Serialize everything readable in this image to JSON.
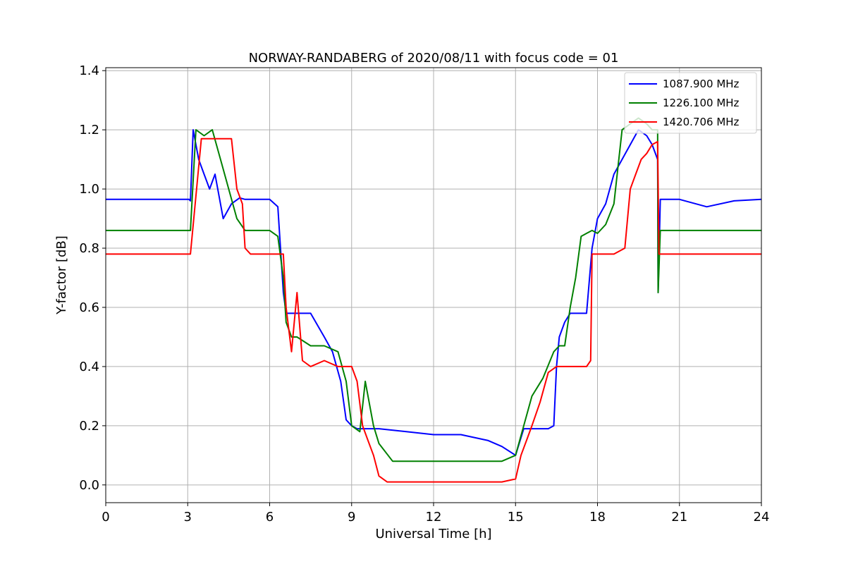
{
  "chart_data": {
    "type": "line",
    "title": "NORWAY-RANDABERG of 2020/08/11 with focus code = 01",
    "xlabel": "Universal Time [h]",
    "ylabel": "Y-factor [dB]",
    "xlim": [
      0,
      24
    ],
    "ylim": [
      -0.06,
      1.41
    ],
    "xticks": [
      0,
      3,
      6,
      9,
      12,
      15,
      18,
      21,
      24
    ],
    "xtick_labels": [
      "0",
      "3",
      "6",
      "9",
      "12",
      "15",
      "18",
      "21",
      "24"
    ],
    "yticks": [
      0.0,
      0.2,
      0.4,
      0.6,
      0.8,
      1.0,
      1.2,
      1.4
    ],
    "ytick_labels": [
      "0.0",
      "0.2",
      "0.4",
      "0.6",
      "0.8",
      "1.0",
      "1.2",
      "1.4"
    ],
    "grid": true,
    "legend_position": "top-right",
    "series": [
      {
        "name": "1087.900 MHz",
        "color": "#0000ff",
        "x": [
          0,
          3.05,
          3.1,
          3.2,
          3.4,
          3.6,
          3.8,
          4.0,
          4.3,
          4.6,
          4.9,
          5.1,
          5.5,
          6.0,
          6.3,
          6.5,
          6.6,
          6.8,
          7.0,
          7.5,
          8.0,
          8.3,
          8.6,
          8.8,
          9.0,
          9.2,
          9.5,
          10.0,
          11.0,
          12.0,
          13.0,
          14.0,
          14.5,
          15.0,
          15.3,
          15.6,
          15.9,
          16.2,
          16.4,
          16.5,
          16.6,
          16.8,
          17.0,
          17.3,
          17.6,
          17.8,
          18.0,
          18.3,
          18.6,
          18.9,
          19.2,
          19.5,
          19.8,
          20.0,
          20.2,
          20.22,
          20.3,
          21.0,
          22.0,
          23.0,
          24.0
        ],
        "y": [
          0.965,
          0.965,
          0.96,
          1.2,
          1.1,
          1.05,
          1.0,
          1.05,
          0.9,
          0.95,
          0.97,
          0.965,
          0.965,
          0.965,
          0.94,
          0.65,
          0.58,
          0.58,
          0.58,
          0.58,
          0.5,
          0.45,
          0.35,
          0.22,
          0.2,
          0.19,
          0.19,
          0.19,
          0.18,
          0.17,
          0.17,
          0.15,
          0.13,
          0.1,
          0.19,
          0.19,
          0.19,
          0.19,
          0.2,
          0.4,
          0.5,
          0.55,
          0.58,
          0.58,
          0.58,
          0.8,
          0.9,
          0.95,
          1.05,
          1.1,
          1.15,
          1.2,
          1.18,
          1.15,
          1.1,
          0.65,
          0.965,
          0.965,
          0.94,
          0.96,
          0.965
        ]
      },
      {
        "name": "1226.100 MHz",
        "color": "#008000",
        "x": [
          0,
          3.05,
          3.1,
          3.3,
          3.6,
          3.9,
          4.2,
          4.5,
          4.8,
          5.1,
          5.5,
          6.0,
          6.3,
          6.5,
          6.6,
          6.8,
          7.0,
          7.5,
          8.0,
          8.5,
          8.8,
          9.0,
          9.3,
          9.5,
          9.8,
          10.0,
          10.5,
          11.0,
          12.0,
          13.0,
          14.0,
          14.5,
          15.0,
          15.3,
          15.6,
          16.0,
          16.4,
          16.6,
          16.8,
          17.0,
          17.2,
          17.4,
          17.6,
          17.8,
          18.0,
          18.3,
          18.6,
          18.9,
          19.2,
          19.5,
          19.8,
          20.0,
          20.2,
          20.22,
          20.3,
          21.0,
          22.0,
          23.0,
          24.0
        ],
        "y": [
          0.86,
          0.86,
          0.86,
          1.2,
          1.18,
          1.2,
          1.1,
          1.0,
          0.9,
          0.86,
          0.86,
          0.86,
          0.84,
          0.7,
          0.55,
          0.5,
          0.5,
          0.47,
          0.47,
          0.45,
          0.35,
          0.2,
          0.18,
          0.35,
          0.2,
          0.14,
          0.08,
          0.08,
          0.08,
          0.08,
          0.08,
          0.08,
          0.1,
          0.2,
          0.3,
          0.36,
          0.45,
          0.47,
          0.47,
          0.6,
          0.7,
          0.84,
          0.85,
          0.86,
          0.85,
          0.88,
          0.95,
          1.2,
          1.22,
          1.24,
          1.22,
          1.2,
          1.2,
          0.65,
          0.86,
          0.86,
          0.86,
          0.86,
          0.86
        ]
      },
      {
        "name": "1420.706 MHz",
        "color": "#ff0000",
        "x": [
          0,
          3.05,
          3.1,
          3.5,
          4.0,
          4.5,
          4.6,
          4.8,
          5.0,
          5.1,
          5.3,
          5.6,
          6.0,
          6.5,
          6.6,
          6.8,
          7.0,
          7.2,
          7.5,
          8.0,
          8.5,
          9.0,
          9.2,
          9.4,
          9.6,
          9.8,
          10.0,
          10.3,
          11.0,
          12.0,
          13.0,
          14.0,
          14.5,
          15.0,
          15.2,
          15.4,
          15.6,
          15.9,
          16.2,
          16.5,
          16.8,
          17.0,
          17.3,
          17.6,
          17.75,
          17.8,
          18.0,
          18.3,
          18.6,
          19.0,
          19.2,
          19.4,
          19.6,
          19.8,
          20.0,
          20.2,
          20.25,
          20.3,
          21.0,
          22.0,
          23.0,
          24.0
        ],
        "y": [
          0.78,
          0.78,
          0.78,
          1.17,
          1.17,
          1.17,
          1.17,
          1.0,
          0.95,
          0.8,
          0.78,
          0.78,
          0.78,
          0.78,
          0.6,
          0.45,
          0.65,
          0.42,
          0.4,
          0.42,
          0.4,
          0.4,
          0.35,
          0.2,
          0.15,
          0.1,
          0.03,
          0.01,
          0.01,
          0.01,
          0.01,
          0.01,
          0.01,
          0.02,
          0.1,
          0.15,
          0.2,
          0.28,
          0.38,
          0.4,
          0.4,
          0.4,
          0.4,
          0.4,
          0.42,
          0.78,
          0.78,
          0.78,
          0.78,
          0.8,
          1.0,
          1.05,
          1.1,
          1.12,
          1.15,
          1.16,
          0.78,
          0.78,
          0.78,
          0.78,
          0.78,
          0.78
        ]
      }
    ]
  }
}
